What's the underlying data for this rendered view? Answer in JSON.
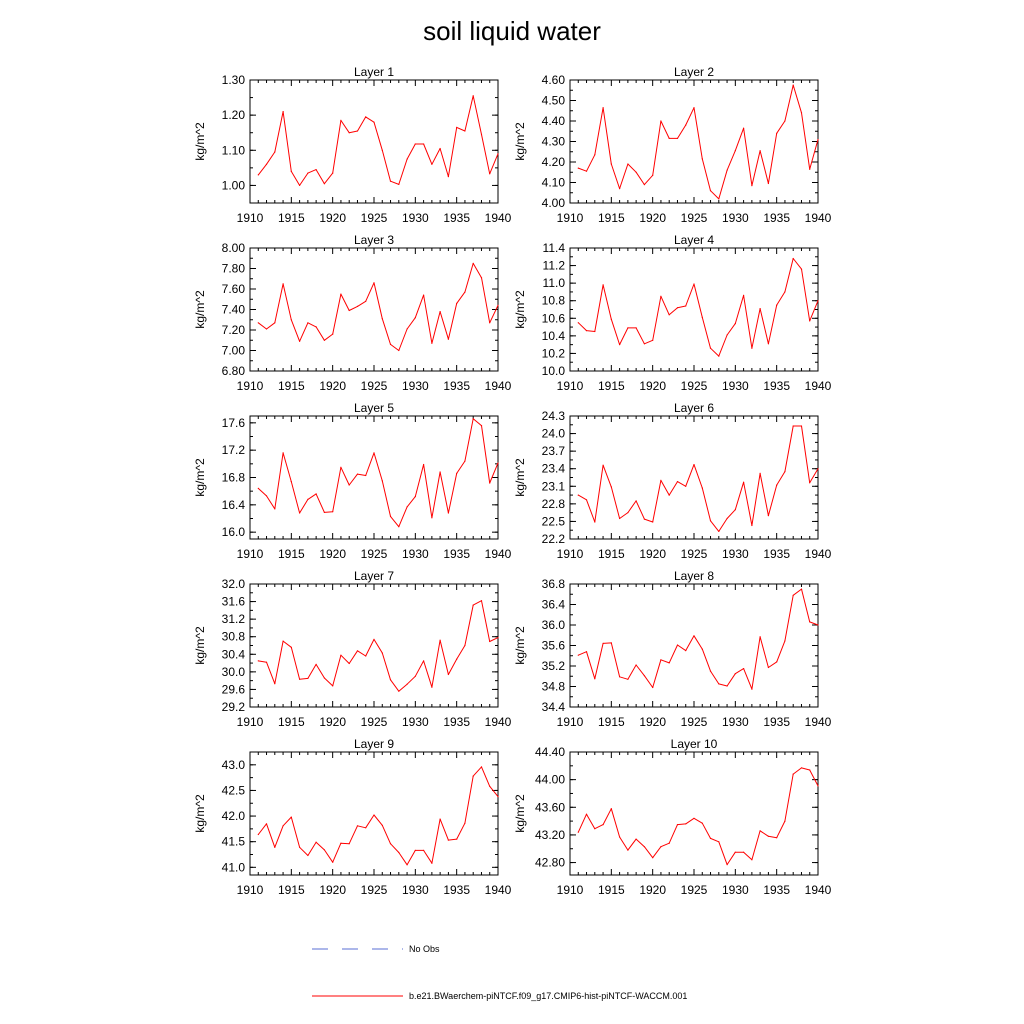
{
  "figure": {
    "title": "soil liquid water",
    "legend": [
      {
        "label": "No Obs",
        "color": "#5a6fd6",
        "dash": true
      },
      {
        "label": "b.e21.BWaerchem-piNTCF.f09_g17.CMIP6-hist-piNTCF-WACCM.001",
        "color": "#ff0000",
        "dash": false
      }
    ]
  },
  "chart_data": [
    {
      "type": "line",
      "title": "Layer 1",
      "ylabel": "kg/m^2",
      "xlim": [
        1910,
        1940
      ],
      "ylim": [
        0.95,
        1.3
      ],
      "xticks": [
        "1910",
        "1915",
        "1920",
        "1925",
        "1930",
        "1935",
        "1940"
      ],
      "yticks": [
        "1.00",
        "1.10",
        "1.20",
        "1.30"
      ],
      "yticks_v": [
        1.0,
        1.1,
        1.2,
        1.3
      ],
      "series": [
        {
          "color": "#ff0000",
          "x": [
            1911,
            1912,
            1913,
            1914,
            1915,
            1916,
            1917,
            1918,
            1919,
            1920,
            1921,
            1922,
            1923,
            1924,
            1925,
            1926,
            1927,
            1928,
            1929,
            1930,
            1931,
            1932,
            1933,
            1934,
            1935,
            1936,
            1937,
            1938,
            1939,
            1940
          ],
          "y": [
            1.03,
            1.06,
            1.095,
            1.21,
            1.04,
            1.0,
            1.035,
            1.045,
            1.005,
            1.035,
            1.185,
            1.15,
            1.155,
            1.195,
            1.18,
            1.1,
            1.012,
            1.003,
            1.075,
            1.118,
            1.118,
            1.06,
            1.105,
            1.025,
            1.165,
            1.155,
            1.255,
            1.145,
            1.033,
            1.09
          ]
        }
      ]
    },
    {
      "type": "line",
      "title": "Layer 2",
      "ylabel": "kg/m^2",
      "xlim": [
        1910,
        1940
      ],
      "ylim": [
        4.0,
        4.6
      ],
      "xticks": [
        "1910",
        "1915",
        "1920",
        "1925",
        "1930",
        "1935",
        "1940"
      ],
      "yticks": [
        "4.00",
        "4.10",
        "4.20",
        "4.30",
        "4.40",
        "4.50",
        "4.60"
      ],
      "yticks_v": [
        4.0,
        4.1,
        4.2,
        4.3,
        4.4,
        4.5,
        4.6
      ],
      "series": [
        {
          "color": "#ff0000",
          "x": [
            1911,
            1912,
            1913,
            1914,
            1915,
            1916,
            1917,
            1918,
            1919,
            1920,
            1921,
            1922,
            1923,
            1924,
            1925,
            1926,
            1927,
            1928,
            1929,
            1930,
            1931,
            1932,
            1933,
            1934,
            1935,
            1936,
            1937,
            1938,
            1939,
            1940
          ],
          "y": [
            4.17,
            4.155,
            4.235,
            4.465,
            4.19,
            4.07,
            4.19,
            4.15,
            4.09,
            4.135,
            4.4,
            4.315,
            4.315,
            4.38,
            4.465,
            4.215,
            4.06,
            4.02,
            4.16,
            4.255,
            4.365,
            4.085,
            4.255,
            4.095,
            4.34,
            4.4,
            4.575,
            4.44,
            4.165,
            4.31
          ]
        }
      ]
    },
    {
      "type": "line",
      "title": "Layer 3",
      "ylabel": "kg/m^2",
      "xlim": [
        1910,
        1940
      ],
      "ylim": [
        6.8,
        8.0
      ],
      "xticks": [
        "1910",
        "1915",
        "1920",
        "1925",
        "1930",
        "1935",
        "1940"
      ],
      "yticks": [
        "6.80",
        "7.00",
        "7.20",
        "7.40",
        "7.60",
        "7.80",
        "8.00"
      ],
      "yticks_v": [
        6.8,
        7.0,
        7.2,
        7.4,
        7.6,
        7.8,
        8.0
      ],
      "series": [
        {
          "color": "#ff0000",
          "x": [
            1911,
            1912,
            1913,
            1914,
            1915,
            1916,
            1917,
            1918,
            1919,
            1920,
            1921,
            1922,
            1923,
            1924,
            1925,
            1926,
            1927,
            1928,
            1929,
            1930,
            1931,
            1932,
            1933,
            1934,
            1935,
            1936,
            1937,
            1938,
            1939,
            1940
          ],
          "y": [
            7.27,
            7.21,
            7.27,
            7.65,
            7.3,
            7.09,
            7.27,
            7.23,
            7.1,
            7.16,
            7.55,
            7.39,
            7.43,
            7.48,
            7.66,
            7.31,
            7.06,
            7.0,
            7.21,
            7.32,
            7.54,
            7.07,
            7.38,
            7.11,
            7.46,
            7.57,
            7.85,
            7.71,
            7.27,
            7.44
          ]
        }
      ]
    },
    {
      "type": "line",
      "title": "Layer 4",
      "ylabel": "kg/m^2",
      "xlim": [
        1910,
        1940
      ],
      "ylim": [
        10.0,
        11.4
      ],
      "xticks": [
        "1910",
        "1915",
        "1920",
        "1925",
        "1930",
        "1935",
        "1940"
      ],
      "yticks": [
        "10.0",
        "10.2",
        "10.4",
        "10.6",
        "10.8",
        "11.0",
        "11.2",
        "11.4"
      ],
      "yticks_v": [
        10.0,
        10.2,
        10.4,
        10.6,
        10.8,
        11.0,
        11.2,
        11.4
      ],
      "series": [
        {
          "color": "#ff0000",
          "x": [
            1911,
            1912,
            1913,
            1914,
            1915,
            1916,
            1917,
            1918,
            1919,
            1920,
            1921,
            1922,
            1923,
            1924,
            1925,
            1926,
            1927,
            1928,
            1929,
            1930,
            1931,
            1932,
            1933,
            1934,
            1935,
            1936,
            1937,
            1938,
            1939,
            1940
          ],
          "y": [
            10.55,
            10.46,
            10.45,
            10.98,
            10.59,
            10.3,
            10.49,
            10.49,
            10.31,
            10.35,
            10.85,
            10.64,
            10.72,
            10.74,
            10.99,
            10.61,
            10.26,
            10.17,
            10.41,
            10.54,
            10.86,
            10.26,
            10.71,
            10.31,
            10.75,
            10.9,
            11.28,
            11.16,
            10.57,
            10.8
          ]
        }
      ]
    },
    {
      "type": "line",
      "title": "Layer 5",
      "ylabel": "kg/m^2",
      "xlim": [
        1910,
        1940
      ],
      "ylim": [
        15.9,
        17.7
      ],
      "xticks": [
        "1910",
        "1915",
        "1920",
        "1925",
        "1930",
        "1935",
        "1940"
      ],
      "yticks": [
        "16.0",
        "16.4",
        "16.8",
        "17.2",
        "17.6"
      ],
      "yticks_v": [
        16.0,
        16.4,
        16.8,
        17.2,
        17.6
      ],
      "series": [
        {
          "color": "#ff0000",
          "x": [
            1911,
            1912,
            1913,
            1914,
            1915,
            1916,
            1917,
            1918,
            1919,
            1920,
            1921,
            1922,
            1923,
            1924,
            1925,
            1926,
            1927,
            1928,
            1929,
            1930,
            1931,
            1932,
            1933,
            1934,
            1935,
            1936,
            1937,
            1938,
            1939,
            1940
          ],
          "y": [
            16.64,
            16.53,
            16.34,
            17.16,
            16.74,
            16.28,
            16.48,
            16.56,
            16.29,
            16.3,
            16.95,
            16.69,
            16.85,
            16.83,
            17.16,
            16.75,
            16.23,
            16.08,
            16.37,
            16.52,
            16.99,
            16.21,
            16.88,
            16.28,
            16.86,
            17.04,
            17.66,
            17.56,
            16.72,
            17.01
          ]
        }
      ]
    },
    {
      "type": "line",
      "title": "Layer 6",
      "ylabel": "kg/m^2",
      "xlim": [
        1910,
        1940
      ],
      "ylim": [
        22.2,
        24.3
      ],
      "xticks": [
        "1910",
        "1915",
        "1920",
        "1925",
        "1930",
        "1935",
        "1940"
      ],
      "yticks": [
        "22.2",
        "22.5",
        "22.8",
        "23.1",
        "23.4",
        "23.7",
        "24.0",
        "24.3"
      ],
      "yticks_v": [
        22.2,
        22.5,
        22.8,
        23.1,
        23.4,
        23.7,
        24.0,
        24.3
      ],
      "series": [
        {
          "color": "#ff0000",
          "x": [
            1911,
            1912,
            1913,
            1914,
            1915,
            1916,
            1917,
            1918,
            1919,
            1920,
            1921,
            1922,
            1923,
            1924,
            1925,
            1926,
            1927,
            1928,
            1929,
            1930,
            1931,
            1932,
            1933,
            1934,
            1935,
            1936,
            1937,
            1938,
            1939,
            1940
          ],
          "y": [
            22.95,
            22.87,
            22.49,
            23.46,
            23.09,
            22.55,
            22.65,
            22.85,
            22.54,
            22.49,
            23.2,
            22.95,
            23.18,
            23.1,
            23.47,
            23.07,
            22.51,
            22.33,
            22.55,
            22.7,
            23.17,
            22.43,
            23.32,
            22.6,
            23.12,
            23.35,
            24.13,
            24.13,
            23.16,
            23.4
          ]
        }
      ]
    },
    {
      "type": "line",
      "title": "Layer 7",
      "ylabel": "kg/m^2",
      "xlim": [
        1910,
        1940
      ],
      "ylim": [
        29.2,
        32.0
      ],
      "xticks": [
        "1910",
        "1915",
        "1920",
        "1925",
        "1930",
        "1935",
        "1940"
      ],
      "yticks": [
        "29.2",
        "29.6",
        "30.0",
        "30.4",
        "30.8",
        "31.2",
        "31.6",
        "32.0"
      ],
      "yticks_v": [
        29.2,
        29.6,
        30.0,
        30.4,
        30.8,
        31.2,
        31.6,
        32.0
      ],
      "series": [
        {
          "color": "#ff0000",
          "x": [
            1911,
            1912,
            1913,
            1914,
            1915,
            1916,
            1917,
            1918,
            1919,
            1920,
            1921,
            1922,
            1923,
            1924,
            1925,
            1926,
            1927,
            1928,
            1929,
            1930,
            1931,
            1932,
            1933,
            1934,
            1935,
            1936,
            1937,
            1938,
            1939,
            1940
          ],
          "y": [
            30.25,
            30.22,
            29.73,
            30.7,
            30.56,
            29.83,
            29.85,
            30.17,
            29.86,
            29.68,
            30.38,
            30.19,
            30.48,
            30.36,
            30.74,
            30.43,
            29.82,
            29.56,
            29.72,
            29.9,
            30.25,
            29.65,
            30.72,
            29.94,
            30.29,
            30.6,
            31.52,
            31.62,
            30.69,
            30.78
          ]
        }
      ]
    },
    {
      "type": "line",
      "title": "Layer 8",
      "ylabel": "kg/m^2",
      "xlim": [
        1910,
        1940
      ],
      "ylim": [
        34.4,
        36.8
      ],
      "xticks": [
        "1910",
        "1915",
        "1920",
        "1925",
        "1930",
        "1935",
        "1940"
      ],
      "yticks": [
        "34.4",
        "34.8",
        "35.2",
        "35.6",
        "36.0",
        "36.4",
        "36.8"
      ],
      "yticks_v": [
        34.4,
        34.8,
        35.2,
        35.6,
        36.0,
        36.4,
        36.8
      ],
      "series": [
        {
          "color": "#ff0000",
          "x": [
            1911,
            1912,
            1913,
            1914,
            1915,
            1916,
            1917,
            1918,
            1919,
            1920,
            1921,
            1922,
            1923,
            1924,
            1925,
            1926,
            1927,
            1928,
            1929,
            1930,
            1931,
            1932,
            1933,
            1934,
            1935,
            1936,
            1937,
            1938,
            1939,
            1940
          ],
          "y": [
            35.41,
            35.48,
            34.95,
            35.64,
            35.65,
            34.99,
            34.94,
            35.22,
            35.01,
            34.78,
            35.32,
            35.26,
            35.61,
            35.5,
            35.79,
            35.53,
            35.1,
            34.85,
            34.81,
            35.05,
            35.15,
            34.75,
            35.77,
            35.17,
            35.28,
            35.69,
            36.58,
            36.7,
            36.06,
            36.0
          ]
        }
      ]
    },
    {
      "type": "line",
      "title": "Layer 9",
      "ylabel": "kg/m^2",
      "xlim": [
        1910,
        1940
      ],
      "ylim": [
        40.85,
        43.25
      ],
      "xticks": [
        "1910",
        "1915",
        "1920",
        "1925",
        "1930",
        "1935",
        "1940"
      ],
      "yticks": [
        "41.0",
        "41.5",
        "42.0",
        "42.5",
        "43.0"
      ],
      "yticks_v": [
        41.0,
        41.5,
        42.0,
        42.5,
        43.0
      ],
      "series": [
        {
          "color": "#ff0000",
          "x": [
            1911,
            1912,
            1913,
            1914,
            1915,
            1916,
            1917,
            1918,
            1919,
            1920,
            1921,
            1922,
            1923,
            1924,
            1925,
            1926,
            1927,
            1928,
            1929,
            1930,
            1931,
            1932,
            1933,
            1934,
            1935,
            1936,
            1937,
            1938,
            1939,
            1940
          ],
          "y": [
            41.64,
            41.85,
            41.39,
            41.81,
            41.98,
            41.39,
            41.23,
            41.49,
            41.34,
            41.1,
            41.47,
            41.46,
            41.81,
            41.77,
            42.02,
            41.82,
            41.46,
            41.29,
            41.05,
            41.33,
            41.33,
            41.08,
            41.94,
            41.53,
            41.55,
            41.86,
            42.78,
            42.96,
            42.58,
            42.38
          ]
        }
      ]
    },
    {
      "type": "line",
      "title": "Layer 10",
      "ylabel": "kg/m^2",
      "xlim": [
        1910,
        1940
      ],
      "ylim": [
        42.62,
        44.4
      ],
      "xticks": [
        "1910",
        "1915",
        "1920",
        "1925",
        "1930",
        "1935",
        "1940"
      ],
      "yticks": [
        "42.80",
        "43.20",
        "43.60",
        "44.00",
        "44.40"
      ],
      "yticks_v": [
        42.8,
        43.2,
        43.6,
        44.0,
        44.4
      ],
      "series": [
        {
          "color": "#ff0000",
          "x": [
            1911,
            1912,
            1913,
            1914,
            1915,
            1916,
            1917,
            1918,
            1919,
            1920,
            1921,
            1922,
            1923,
            1924,
            1925,
            1926,
            1927,
            1928,
            1929,
            1930,
            1931,
            1932,
            1933,
            1934,
            1935,
            1936,
            1937,
            1938,
            1939,
            1940
          ],
          "y": [
            43.24,
            43.5,
            43.29,
            43.35,
            43.58,
            43.17,
            42.98,
            43.14,
            43.03,
            42.87,
            43.03,
            43.08,
            43.35,
            43.36,
            43.44,
            43.37,
            43.15,
            43.1,
            42.77,
            42.95,
            42.95,
            42.84,
            43.26,
            43.18,
            43.16,
            43.4,
            44.08,
            44.17,
            44.14,
            43.91
          ]
        }
      ]
    }
  ]
}
